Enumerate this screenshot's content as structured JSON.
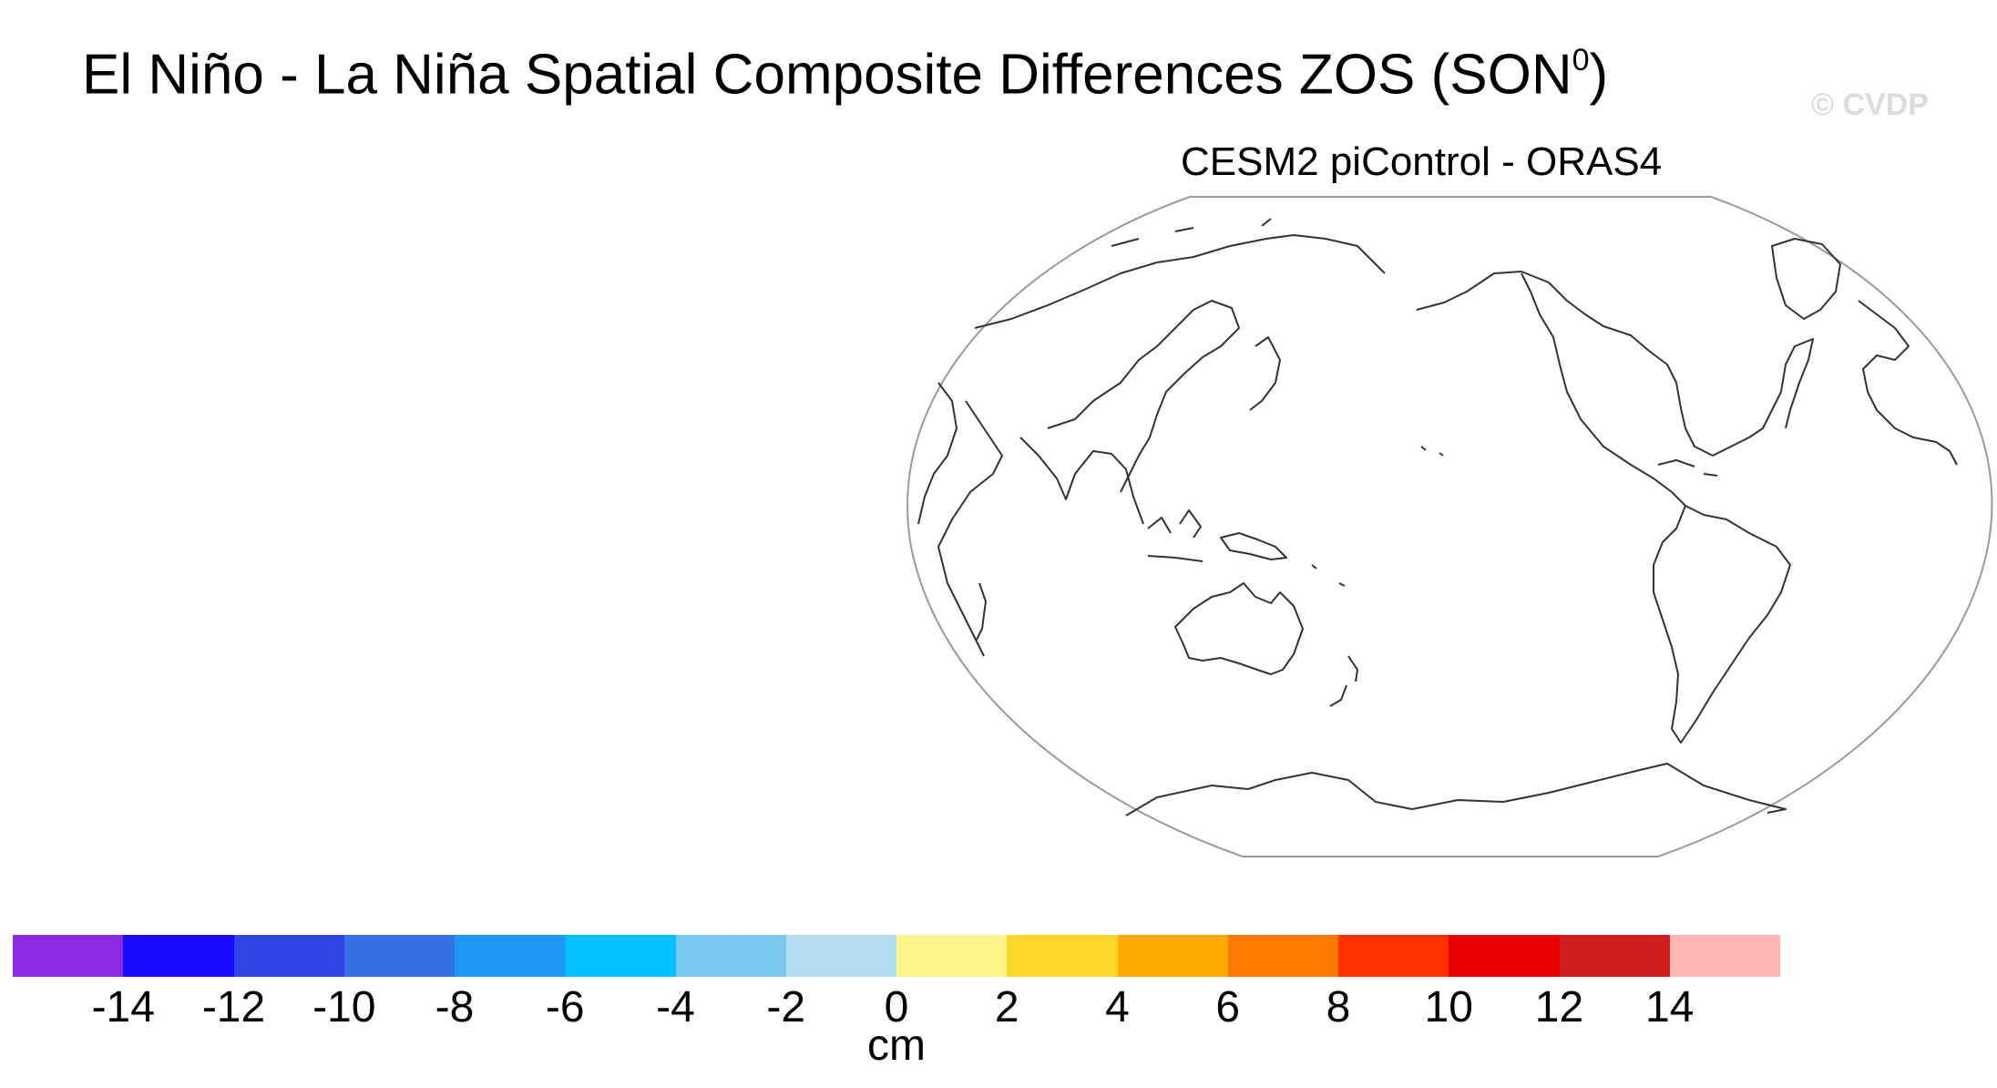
{
  "title": {
    "main": "El Niño - La Niña Spatial Composite Differences ZOS (SON",
    "superscript": "0",
    "close": ")"
  },
  "watermark": "© CVDP",
  "subtitle": "CESM2 piControl - ORAS4",
  "colorbar": {
    "colors": [
      "#8a2be2",
      "#1a0aff",
      "#2e44e6",
      "#3472e6",
      "#1e96f5",
      "#00c0ff",
      "#78c8f0",
      "#b4dcf2",
      "#fff58c",
      "#ffd728",
      "#ffaa00",
      "#ff7800",
      "#ff3200",
      "#e60000",
      "#d21e1e",
      "#ffb4b4"
    ],
    "tick_labels": [
      "-14",
      "-12",
      "-10",
      "-8",
      "-6",
      "-4",
      "-2",
      "0",
      "2",
      "4",
      "6",
      "8",
      "10",
      "12",
      "14"
    ],
    "units": "cm"
  },
  "map": {
    "projection": "Robinson, Pacific-centered",
    "data_field": "none (no shading plotted, coastlines only)",
    "coastline_color": "#333333"
  }
}
